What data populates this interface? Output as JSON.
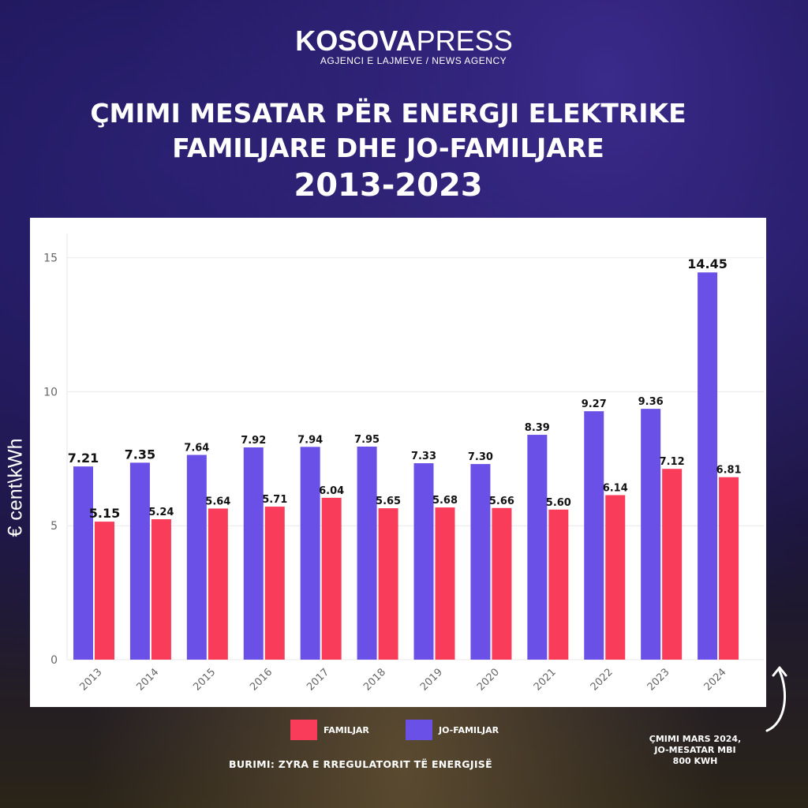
{
  "brand": {
    "name_bold": "KOSOVA",
    "name_light": "PRESS",
    "tagline": "AGJENCI E LAJMEVE / NEWS AGENCY"
  },
  "header": {
    "title_line1": "ÇMIMI MESATAR PËR ENERGJI ELEKTRIKE",
    "title_line2": "FAMILJARE DHE JO-FAMILJARE",
    "years": "2013-2023"
  },
  "legend": {
    "familjar": "FAMILJAR",
    "jo_familjar": "JO-FAMILJAR"
  },
  "source": "BURIMI: ZYRA E RREGULATORIT TË ENERGJISË",
  "note": [
    "ÇMIMI MARS 2024,",
    "JO-MESATAR MBI",
    "800 KWH"
  ],
  "colors": {
    "familjar": "#f83c5a",
    "jo_familjar": "#6a50e6"
  },
  "chart_data": {
    "type": "bar",
    "ylabel": "€ cent\\kWh",
    "xlabel": "",
    "ylim": [
      0,
      16
    ],
    "yticks": [
      0,
      5,
      10,
      15
    ],
    "grid": true,
    "categories": [
      "2013",
      "2014",
      "2015",
      "2016",
      "2017",
      "2018",
      "2019",
      "2020",
      "2021",
      "2022",
      "2023",
      "2024"
    ],
    "series": [
      {
        "name": "JO-FAMILJAR",
        "values": [
          7.21,
          7.35,
          7.64,
          7.92,
          7.94,
          7.95,
          7.33,
          7.3,
          8.39,
          9.27,
          9.36,
          14.45
        ],
        "labels": [
          "7.21",
          "7.35",
          "7.64",
          "7.92",
          "7.94",
          "7.95",
          "7.33",
          "7.30",
          "8.39",
          "9.27",
          "9.36",
          "14.45"
        ]
      },
      {
        "name": "FAMILJAR",
        "values": [
          5.15,
          5.24,
          5.64,
          5.71,
          6.04,
          5.65,
          5.68,
          5.66,
          5.6,
          6.14,
          7.12,
          6.81
        ],
        "labels": [
          "5.15",
          "5.24",
          "5.64",
          "5.71",
          "6.04",
          "5.65",
          "5.68",
          "5.66",
          "5.60",
          "6.14",
          "7.12",
          "6.81"
        ]
      }
    ]
  }
}
